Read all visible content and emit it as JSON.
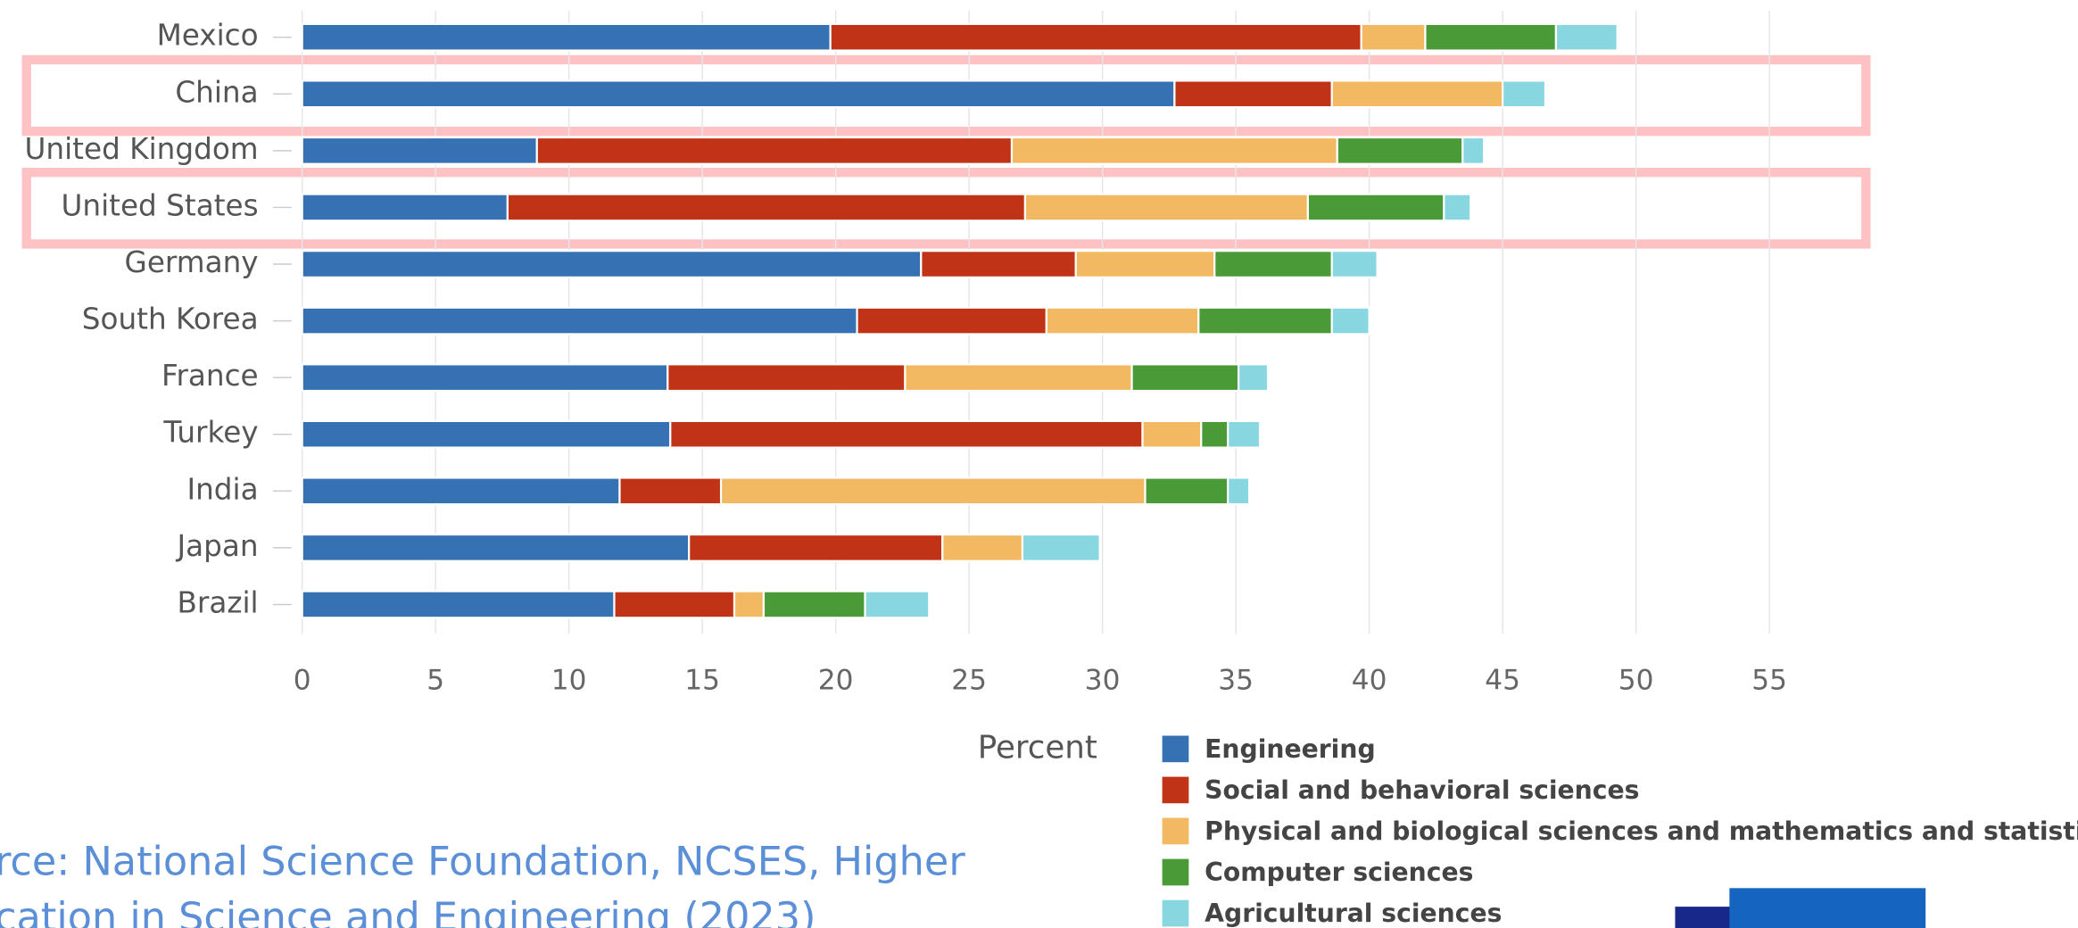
{
  "chart_data": {
    "type": "stacked_barh",
    "categories": [
      "Mexico",
      "China",
      "United Kingdom",
      "United States",
      "Germany",
      "South Korea",
      "France",
      "Turkey",
      "India",
      "Japan",
      "Brazil"
    ],
    "series": [
      {
        "name": "Engineering",
        "color": "#3672b3",
        "values": [
          19.8,
          32.7,
          8.8,
          7.7,
          23.2,
          20.8,
          13.7,
          13.8,
          11.9,
          14.5,
          11.7
        ]
      },
      {
        "name": "Social and behavioral sciences",
        "color": "#c03316",
        "values": [
          19.9,
          5.9,
          17.8,
          19.4,
          5.8,
          7.1,
          8.9,
          17.7,
          3.8,
          9.5,
          4.5
        ]
      },
      {
        "name": "Physical and biological sciences and mathematics and statistics",
        "color": "#f2b962",
        "values": [
          2.4,
          6.4,
          12.2,
          10.6,
          5.2,
          5.7,
          8.5,
          2.2,
          15.9,
          3.0,
          1.1
        ]
      },
      {
        "name": "Computer sciences",
        "color": "#4a9a38",
        "values": [
          4.9,
          0,
          4.7,
          5.1,
          4.4,
          5.0,
          4.0,
          1.0,
          3.1,
          0,
          3.8
        ]
      },
      {
        "name": "Agricultural sciences",
        "color": "#88d6e0",
        "values": [
          2.3,
          1.6,
          0.8,
          1.0,
          1.7,
          1.4,
          1.1,
          1.2,
          0.8,
          2.9,
          2.4
        ]
      }
    ],
    "xlim": [
      0,
      58.5
    ],
    "xticks": [
      0,
      5,
      10,
      15,
      20,
      25,
      30,
      35,
      40,
      45,
      50,
      55
    ],
    "grid": true,
    "x_label": "Percent",
    "source": [
      "rce: National Science Foundation, NCSES, Higher",
      "cation in Science and Engineering (2023)"
    ]
  }
}
